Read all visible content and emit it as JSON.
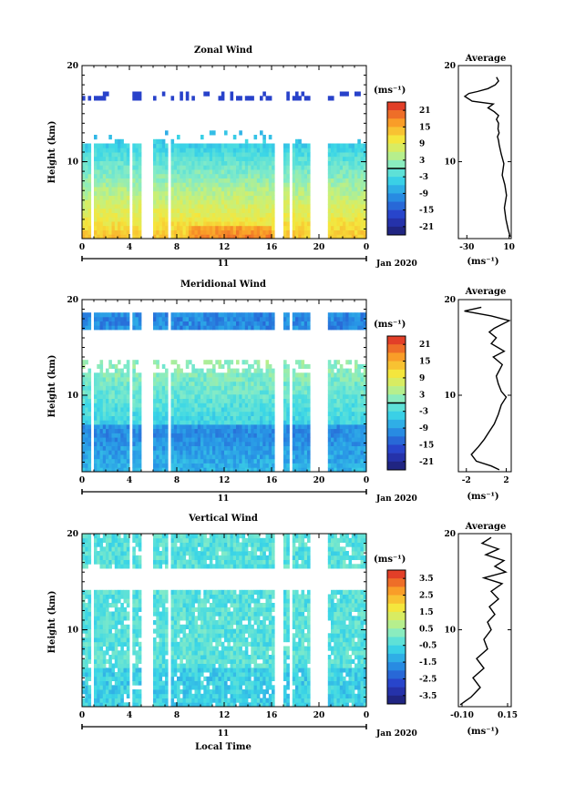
{
  "chart_data": [
    {
      "type": "heatmap",
      "title": "Zonal Wind",
      "ylabel": "Height (km)",
      "ylim": [
        2,
        20
      ],
      "y_ticks": [
        "10",
        "20"
      ],
      "x_ticks": [
        "0",
        "4",
        "8",
        "12",
        "16",
        "20",
        "0"
      ],
      "xlim": [
        0,
        24
      ],
      "day_label": "11",
      "date_label": "Jan 2020",
      "colorbar": {
        "unit": "(ms⁻¹)",
        "ticks": [
          "21",
          "15",
          "9",
          "3",
          "-3",
          "-9",
          "-15",
          "-21"
        ],
        "range": [
          -24,
          24
        ],
        "zero_line": true
      },
      "profile": {
        "title": "Average",
        "xlabel": "(ms⁻¹)",
        "x_ticks": [
          "-30",
          "10"
        ],
        "x_tick_values": [
          -30,
          10
        ],
        "xlim": [
          -38,
          12
        ],
        "y_ticks": [
          "10",
          "20"
        ],
        "points": [
          [
            11,
            2.2
          ],
          [
            9,
            3.0
          ],
          [
            7,
            4.0
          ],
          [
            5.5,
            5.2
          ],
          [
            7.5,
            6.5
          ],
          [
            6,
            7.6
          ],
          [
            3.5,
            8.6
          ],
          [
            5,
            9.8
          ],
          [
            2.5,
            10.8
          ],
          [
            0.5,
            11.8
          ],
          [
            0,
            12.2
          ],
          [
            -1,
            12.6
          ],
          [
            0.5,
            13.0
          ],
          [
            -0.5,
            13.4
          ],
          [
            0,
            14.0
          ],
          [
            -2,
            14.4
          ],
          [
            0,
            14.8
          ],
          [
            -4,
            15.2
          ],
          [
            -10,
            15.6
          ],
          [
            -5,
            16.0
          ],
          [
            -25,
            16.3
          ],
          [
            -32,
            16.8
          ],
          [
            -28,
            17.1
          ],
          [
            -20,
            17.3
          ],
          [
            -10,
            17.6
          ],
          [
            -3,
            18.0
          ],
          [
            0,
            18.4
          ],
          [
            -2,
            18.8
          ]
        ]
      }
    },
    {
      "type": "heatmap",
      "title": "Meridional Wind",
      "ylabel": "Height (km)",
      "ylim": [
        2,
        20
      ],
      "y_ticks": [
        "10",
        "20"
      ],
      "x_ticks": [
        "0",
        "4",
        "8",
        "12",
        "16",
        "20",
        "0"
      ],
      "xlim": [
        0,
        24
      ],
      "day_label": "11",
      "date_label": "Jan 2020",
      "colorbar": {
        "unit": "(ms⁻¹)",
        "ticks": [
          "21",
          "15",
          "9",
          "3",
          "-3",
          "-9",
          "-15",
          "-21"
        ],
        "range": [
          -24,
          24
        ],
        "zero_line": true
      },
      "profile": {
        "title": "Average",
        "xlabel": "(ms⁻¹)",
        "x_ticks": [
          "-2",
          "2"
        ],
        "x_tick_values": [
          -2,
          2
        ],
        "xlim": [
          -2.8,
          2.5
        ],
        "y_ticks": [
          "10",
          "20"
        ],
        "points": [
          [
            1.3,
            2.2
          ],
          [
            0.5,
            2.6
          ],
          [
            -1.0,
            3.1
          ],
          [
            -1.5,
            3.8
          ],
          [
            -0.8,
            4.6
          ],
          [
            -0.2,
            5.4
          ],
          [
            0.3,
            6.2
          ],
          [
            0.8,
            7.0
          ],
          [
            1.2,
            8.0
          ],
          [
            1.5,
            9.0
          ],
          [
            2.0,
            9.8
          ],
          [
            1.5,
            10.4
          ],
          [
            1.2,
            11.2
          ],
          [
            1.0,
            12.0
          ],
          [
            1.6,
            13.2
          ],
          [
            0.7,
            14.0
          ],
          [
            1.8,
            14.6
          ],
          [
            0.5,
            15.4
          ],
          [
            1.0,
            16.0
          ],
          [
            0.3,
            16.6
          ],
          [
            0.8,
            17.0
          ],
          [
            2.3,
            17.8
          ],
          [
            0.5,
            18.3
          ],
          [
            -2.2,
            18.8
          ],
          [
            -0.5,
            19.2
          ]
        ]
      }
    },
    {
      "type": "heatmap",
      "title": "Vertical Wind",
      "ylabel": "Height (km)",
      "xlabel": "Local Time",
      "ylim": [
        2,
        20
      ],
      "y_ticks": [
        "10",
        "20"
      ],
      "x_ticks": [
        "0",
        "4",
        "8",
        "12",
        "16",
        "20",
        "0"
      ],
      "xlim": [
        0,
        24
      ],
      "day_label": "11",
      "date_label": "Jan 2020",
      "colorbar": {
        "unit": "(ms⁻¹)",
        "ticks": [
          "3.5",
          "2.5",
          "1.5",
          "0.5",
          "-0.5",
          "-1.5",
          "-2.5",
          "-3.5"
        ],
        "range": [
          -4,
          4
        ],
        "zero_line": false
      },
      "profile": {
        "title": "Average",
        "xlabel": "(ms⁻¹)",
        "x_ticks": [
          "-0.10",
          "0.15"
        ],
        "x_tick_values": [
          -0.1,
          0.15
        ],
        "xlim": [
          -0.12,
          0.17
        ],
        "y_ticks": [
          "10",
          "20"
        ],
        "points": [
          [
            -0.11,
            2.2
          ],
          [
            -0.05,
            3.0
          ],
          [
            0.0,
            4.0
          ],
          [
            -0.04,
            5.0
          ],
          [
            0.02,
            6.0
          ],
          [
            -0.02,
            7.0
          ],
          [
            0.04,
            8.0
          ],
          [
            0.02,
            9.0
          ],
          [
            0.06,
            10.0
          ],
          [
            0.04,
            10.8
          ],
          [
            0.08,
            11.6
          ],
          [
            0.05,
            12.4
          ],
          [
            0.1,
            13.2
          ],
          [
            0.06,
            14.0
          ],
          [
            0.12,
            14.8
          ],
          [
            0.02,
            15.4
          ],
          [
            0.14,
            16.0
          ],
          [
            0.08,
            16.6
          ],
          [
            0.13,
            17.2
          ],
          [
            0.03,
            17.8
          ],
          [
            0.1,
            18.4
          ],
          [
            0.01,
            19.0
          ],
          [
            0.06,
            19.6
          ]
        ]
      }
    }
  ]
}
